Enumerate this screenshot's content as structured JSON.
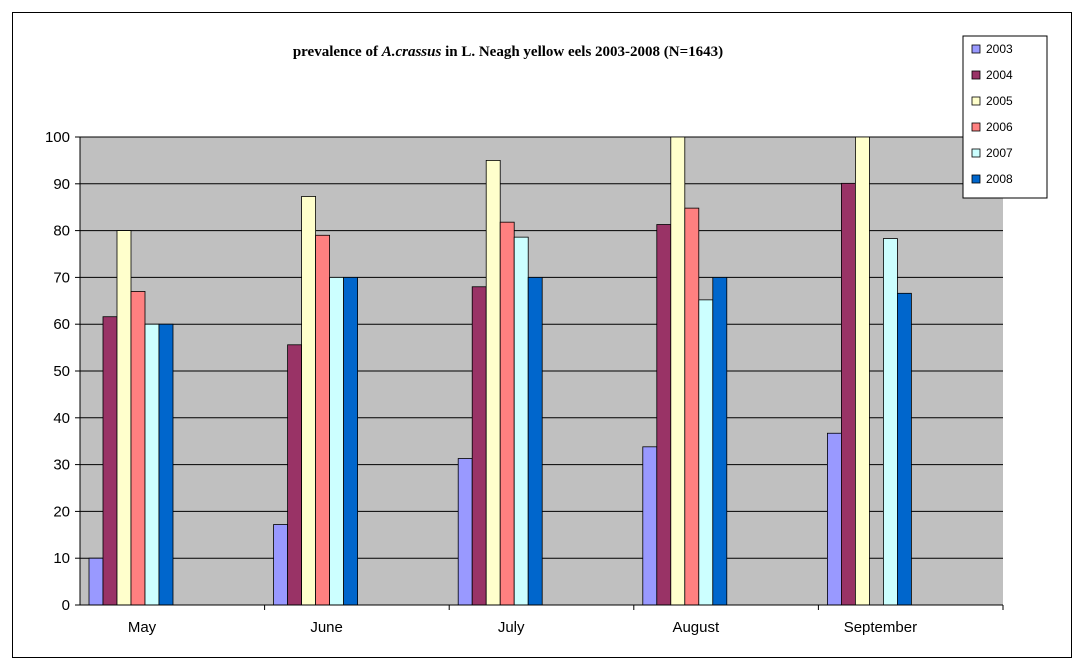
{
  "chart_data": {
    "type": "bar",
    "title_parts": [
      "prevalence of ",
      "A.crassus",
      " in L. Neagh yellow eels 2003-2008 (N=1643)"
    ],
    "categories": [
      "May",
      "June",
      "July",
      "August",
      "September"
    ],
    "ylim": [
      0,
      100
    ],
    "yticks": [
      0,
      10,
      20,
      30,
      40,
      50,
      60,
      70,
      80,
      90,
      100
    ],
    "grid": true,
    "plot_background": "#c0c0c0",
    "legend_position": "top-right",
    "series": [
      {
        "name": "2003",
        "color": "#9999ff",
        "values": [
          10,
          17.2,
          31.3,
          33.8,
          36.7
        ]
      },
      {
        "name": "2004",
        "color": "#993366",
        "values": [
          61.6,
          55.6,
          68,
          81.3,
          90.1
        ]
      },
      {
        "name": "2005",
        "color": "#ffffcc",
        "values": [
          80,
          87.3,
          95,
          100,
          100
        ]
      },
      {
        "name": "2006",
        "color": "#ff8080",
        "values": [
          67,
          79,
          81.8,
          84.8,
          null
        ]
      },
      {
        "name": "2007",
        "color": "#ccffff",
        "values": [
          60,
          70,
          78.6,
          65.2,
          78.3
        ]
      },
      {
        "name": "2008",
        "color": "#0066cc",
        "values": [
          60,
          70,
          70,
          70,
          66.6
        ]
      }
    ]
  }
}
